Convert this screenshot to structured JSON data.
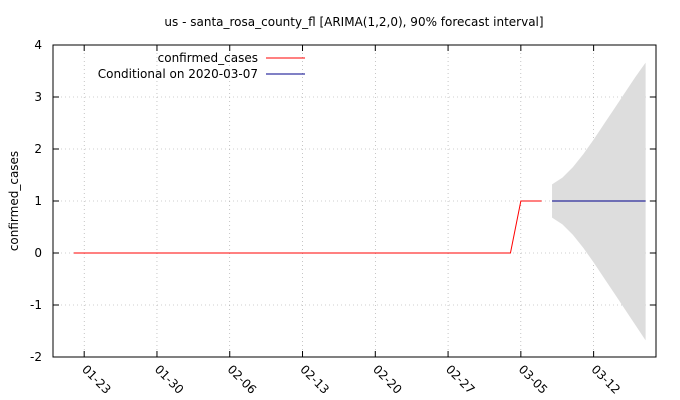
{
  "chart_data": {
    "type": "line",
    "title": "us - santa_rosa_county_fl [ARIMA(1,2,0), 90% forecast interval]",
    "xlabel": "",
    "ylabel": "confirmed_cases",
    "ylim": [
      -2,
      4
    ],
    "yticks": [
      -2,
      -1,
      0,
      1,
      2,
      3,
      4
    ],
    "xticks": [
      "01-23",
      "01-30",
      "02-06",
      "02-13",
      "02-20",
      "02-27",
      "03-05",
      "03-12"
    ],
    "grid": true,
    "legend_position": "top-left",
    "series": [
      {
        "name": "confirmed_cases",
        "color": "#ff0000",
        "x": [
          "2020-01-22",
          "2020-03-04",
          "2020-03-05",
          "2020-03-07"
        ],
        "y": [
          0,
          0,
          1,
          1
        ]
      },
      {
        "name": "Conditional on 2020-03-07",
        "color": "#00008b",
        "x": [
          "2020-03-08",
          "2020-03-17"
        ],
        "y": [
          1,
          1
        ]
      }
    ],
    "forecast_interval": {
      "color": "#dddddd",
      "x": [
        "2020-03-08",
        "2020-03-09",
        "2020-03-10",
        "2020-03-11",
        "2020-03-12",
        "2020-03-13",
        "2020-03-14",
        "2020-03-15",
        "2020-03-16",
        "2020-03-17"
      ],
      "lower": [
        0.68,
        0.55,
        0.35,
        0.1,
        -0.18,
        -0.48,
        -0.78,
        -1.08,
        -1.38,
        -1.68
      ],
      "upper": [
        1.32,
        1.45,
        1.65,
        1.9,
        2.18,
        2.48,
        2.78,
        3.08,
        3.38,
        3.66
      ]
    }
  }
}
